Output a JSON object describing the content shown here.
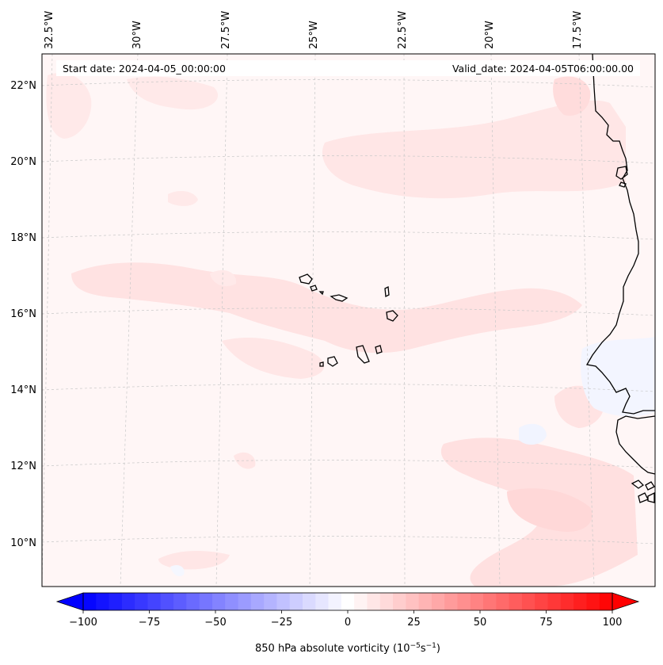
{
  "header": {
    "start_date": "Start date: 2024-04-05_00:00:00",
    "valid_date": "Valid_date: 2024-04-05T06:00:00.00"
  },
  "longitude_labels": [
    "32.5°W",
    "30°W",
    "27.5°W",
    "25°W",
    "22.5°W",
    "20°W",
    "17.5°W"
  ],
  "latitude_labels": [
    "22°N",
    "20°N",
    "18°N",
    "16°N",
    "14°N",
    "12°N",
    "10°N"
  ],
  "colorbar": {
    "label_text": "850 hPa absolute vorticity (10",
    "label_exp1": "−5",
    "label_mid": "s",
    "label_exp2": "−1",
    "label_end": ")",
    "ticks": [
      "−100",
      "−75",
      "−50",
      "−25",
      "0",
      "25",
      "50",
      "75",
      "100"
    ],
    "min_color": "#0000ff",
    "mid_color": "#ffffff",
    "max_color": "#ff0000",
    "levels": 41
  },
  "colors": {
    "background_field": "#fff5f5",
    "positive_light": "#ffe3e3",
    "positive_medium": "#ffd4d4",
    "negative_light": "#f4f6ff",
    "coastline": "#000000",
    "gridline": "#c8c8c8"
  }
}
